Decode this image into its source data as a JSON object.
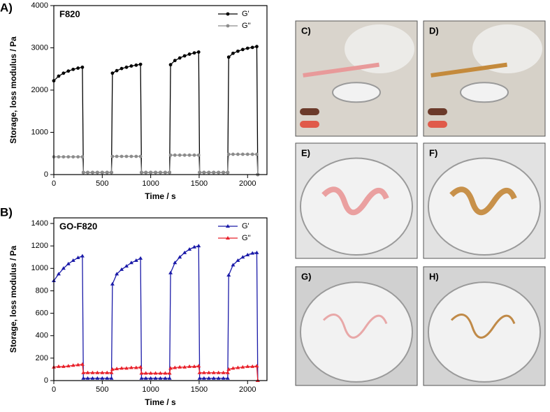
{
  "chart_data": [
    {
      "type": "line",
      "panel_label": "A)",
      "title": "F820",
      "x_label": "Time / s",
      "y_label": "Storage, loss modulus / Pa",
      "x": [
        0,
        50,
        100,
        150,
        200,
        250,
        295,
        305,
        350,
        400,
        450,
        500,
        550,
        595,
        605,
        650,
        700,
        750,
        800,
        850,
        895,
        905,
        950,
        1000,
        1050,
        1100,
        1150,
        1195,
        1205,
        1250,
        1300,
        1350,
        1400,
        1450,
        1495,
        1505,
        1550,
        1600,
        1650,
        1700,
        1750,
        1795,
        1805,
        1850,
        1900,
        1950,
        2000,
        2050,
        2095,
        2105
      ],
      "xlim": [
        0,
        2200
      ],
      "xticks": [
        0,
        500,
        1000,
        1500,
        2000
      ],
      "ylim": [
        0,
        4000
      ],
      "yticks": [
        0,
        1000,
        2000,
        3000,
        4000
      ],
      "legend": "upper right",
      "series": [
        {
          "name": "G'",
          "color": "#000000",
          "marker": "circle",
          "values": [
            2220,
            2330,
            2400,
            2450,
            2490,
            2520,
            2540,
            50,
            50,
            50,
            50,
            50,
            50,
            50,
            2400,
            2460,
            2510,
            2540,
            2570,
            2590,
            2610,
            50,
            50,
            50,
            50,
            50,
            50,
            50,
            2600,
            2700,
            2760,
            2810,
            2850,
            2880,
            2900,
            50,
            50,
            50,
            50,
            50,
            50,
            50,
            2780,
            2870,
            2920,
            2960,
            2990,
            3010,
            3030,
            0
          ]
        },
        {
          "name": "G''",
          "color": "#8c8c8c",
          "marker": "circle",
          "values": [
            420,
            420,
            420,
            420,
            420,
            420,
            420,
            50,
            50,
            50,
            50,
            50,
            50,
            50,
            430,
            430,
            430,
            430,
            430,
            430,
            430,
            50,
            50,
            50,
            50,
            50,
            50,
            50,
            460,
            460,
            460,
            460,
            460,
            460,
            460,
            50,
            50,
            50,
            50,
            50,
            50,
            50,
            480,
            480,
            480,
            480,
            480,
            480,
            480,
            0
          ]
        }
      ]
    },
    {
      "type": "line",
      "panel_label": "B)",
      "title": "GO-F820",
      "x_label": "Time / s",
      "y_label": "Storage, loss modulus / Pa",
      "x": [
        0,
        50,
        100,
        150,
        200,
        250,
        295,
        305,
        350,
        400,
        450,
        500,
        550,
        595,
        605,
        650,
        700,
        750,
        800,
        850,
        895,
        905,
        950,
        1000,
        1050,
        1100,
        1150,
        1195,
        1205,
        1250,
        1300,
        1350,
        1400,
        1450,
        1495,
        1505,
        1550,
        1600,
        1650,
        1700,
        1750,
        1795,
        1805,
        1850,
        1900,
        1950,
        2000,
        2050,
        2095,
        2105
      ],
      "xlim": [
        0,
        2200
      ],
      "xticks": [
        0,
        500,
        1000,
        1500,
        2000
      ],
      "ylim": [
        0,
        1450
      ],
      "yticks": [
        0,
        200,
        400,
        600,
        800,
        1000,
        1200,
        1400
      ],
      "legend": "upper right",
      "series": [
        {
          "name": "G'",
          "color": "#1a1aa8",
          "marker": "triangle",
          "values": [
            890,
            950,
            1000,
            1040,
            1070,
            1095,
            1110,
            20,
            20,
            20,
            20,
            20,
            20,
            20,
            860,
            950,
            990,
            1020,
            1050,
            1070,
            1090,
            20,
            20,
            20,
            20,
            20,
            20,
            20,
            960,
            1050,
            1100,
            1140,
            1170,
            1190,
            1200,
            20,
            20,
            20,
            20,
            20,
            20,
            20,
            940,
            1030,
            1070,
            1100,
            1120,
            1135,
            1140,
            0
          ]
        },
        {
          "name": "G''",
          "color": "#e8202a",
          "marker": "triangle",
          "values": [
            120,
            125,
            125,
            130,
            135,
            140,
            145,
            70,
            70,
            70,
            70,
            70,
            70,
            70,
            100,
            105,
            110,
            110,
            115,
            115,
            120,
            65,
            65,
            65,
            65,
            65,
            65,
            65,
            110,
            115,
            120,
            120,
            125,
            125,
            130,
            70,
            70,
            70,
            70,
            70,
            70,
            70,
            100,
            110,
            115,
            120,
            125,
            125,
            130,
            0
          ]
        }
      ]
    }
  ],
  "photos": [
    {
      "label": "C)"
    },
    {
      "label": "D)"
    },
    {
      "label": "E)"
    },
    {
      "label": "F)"
    },
    {
      "label": "G)"
    },
    {
      "label": "H)"
    }
  ]
}
